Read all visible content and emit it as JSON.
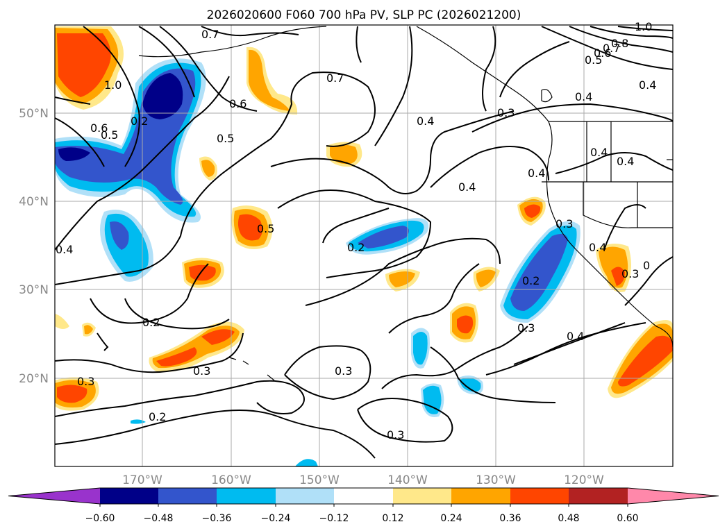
{
  "title": "2026020600 F060 700 hPa PV, SLP PC (2026021200)",
  "axes": {
    "lat_labels": [
      "50°N",
      "40°N",
      "30°N",
      "20°N"
    ],
    "lon_labels": [
      "170°W",
      "160°W",
      "150°W",
      "140°W",
      "130°W",
      "120°W"
    ],
    "tick_color": "#888888"
  },
  "colorbar": {
    "ticks": [
      "−0.60",
      "−0.48",
      "−0.36",
      "−0.24",
      "−0.12",
      "0.12",
      "0.24",
      "0.36",
      "0.48",
      "0.60"
    ],
    "colors": [
      "#9933cc",
      "#000088",
      "#3355cc",
      "#00bbf0",
      "#b0e0f8",
      "#ffffff",
      "#ffe88a",
      "#ffa500",
      "#ff4500",
      "#b22222",
      "#ff88aa"
    ]
  },
  "contour_labels": [
    "0.7",
    "0.7",
    "0.6",
    "0.5",
    "0.4",
    "0.3",
    "0.2",
    "0.2",
    "0.5",
    "0.2",
    "0.3",
    "0.3",
    "0.2",
    "0.3",
    "0.3",
    "0.4",
    "0.4",
    "0.4",
    "0.4",
    "0.3",
    "0.2",
    "0.3",
    "0.4",
    "0.4",
    "0.4",
    "0.5",
    "0.6",
    "0.7",
    "0.8",
    "1.0",
    "0.5",
    "0.6",
    "1.0",
    "0.3",
    "0.4",
    "0.4",
    "0"
  ]
}
